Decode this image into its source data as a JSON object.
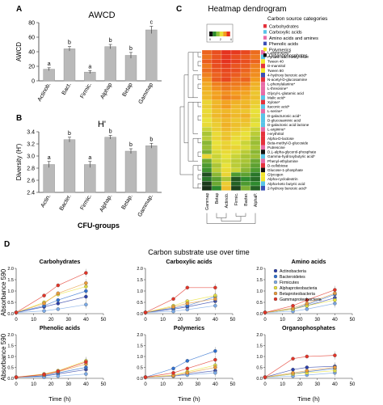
{
  "panels": {
    "A": {
      "letter": "A",
      "chart_data": {
        "type": "bar",
        "title": "AWCD",
        "ylabel": "AWCD",
        "ylim": [
          0,
          80
        ],
        "yticks": [
          0,
          20,
          40,
          60,
          80
        ],
        "categories": [
          "Actinob.",
          "Bact.",
          "Firmic.",
          "Alphap",
          "Betap",
          "Gammap"
        ],
        "values": [
          16,
          44,
          12,
          47,
          35,
          70
        ],
        "errors": [
          2,
          3,
          2,
          3,
          4,
          5
        ],
        "letters": [
          "a",
          "b",
          "a",
          "b",
          "b",
          "c"
        ],
        "grid": false
      }
    },
    "B": {
      "letter": "B",
      "chart_data": {
        "type": "bar",
        "title": "H'",
        "ylabel": "Diversity (H')",
        "xlabel": "CFU-groups",
        "ylim": [
          2.4,
          3.4
        ],
        "yticks": [
          2.4,
          2.6,
          2.8,
          3.0,
          3.2,
          3.4
        ],
        "ytick_labels": [
          "2.4",
          "2.6",
          "2.8",
          "3.0",
          "3.2",
          "3.4"
        ],
        "categories": [
          "Actin.",
          "Bacter.",
          "Firmic.",
          "Alphap.",
          "Betap.",
          "Gammap."
        ],
        "values": [
          2.86,
          3.27,
          2.86,
          3.31,
          3.08,
          3.17
        ],
        "errors": [
          0.05,
          0.04,
          0.05,
          0.03,
          0.04,
          0.04
        ],
        "letters": [
          "a",
          "b",
          "a",
          "b",
          "b",
          "b"
        ],
        "grid": false
      }
    },
    "C": {
      "letter": "C",
      "chart_data": {
        "type": "heatmap",
        "title": "Heatmap dendrogram",
        "colorkey_title": "Color Key",
        "colorkey_ticks": [
          "0",
          "2",
          "4"
        ],
        "colors": {
          "low": "#1a1a1a",
          "mid_low": "#2e8b2e",
          "mid": "#f2e63a",
          "high": "#f39c1e",
          "max": "#e5321f"
        },
        "columns": [
          "Gammap",
          "Betap",
          "Actinob.",
          "Firmic.",
          "Bacter.",
          "AlphaP."
        ],
        "rows": [
          "L-asparagine*",
          "Pyruvic acid methyl ester",
          "Tween 40",
          "D-mannitol",
          "Tween 80",
          "4-hydroxy benzoic acid*",
          "N-acetyl-D-glucosamine",
          "L-phenylalanine*",
          "L-threonine*",
          "Glycyl-L-glutamic acid",
          "Malic acid*",
          "Xylose*",
          "Itaconic acid*",
          "L-serine*",
          "D-galacturonic acid*",
          "D-glucosaminic acid",
          "D-galactonic acid lactone",
          "L-arginine*",
          "i-erythritol",
          "Alpha-D-lactose",
          "Beta-methyl-D-glucoside",
          "Putrescine",
          "D,L-alpha-glycerol-phosphate",
          "Gamma-hydroxybutyric acid*",
          "Phenyl-ethylamine",
          "D-cellobiose",
          "Glucose-1-phosphate",
          "Glycogen",
          "Alpha-cyclodextrin",
          "Alpha-keto butyric acid",
          "2-hydroxy benzoic acid*"
        ],
        "categories_legend_title": "Carbon source categories",
        "categories": [
          {
            "name": "Carbohydrates",
            "color": "#e5313b"
          },
          {
            "name": "Carboxylic acids",
            "color": "#58c4e8"
          },
          {
            "name": "Amino acids and amines",
            "color": "#e86aa6"
          },
          {
            "name": "Phenolic acids",
            "color": "#3a4fb5"
          },
          {
            "name": "Polymerics",
            "color": "#f3e52b"
          },
          {
            "name": "Organophosphates",
            "color": "#111111"
          }
        ],
        "row_categories": [
          2,
          1,
          4,
          0,
          4,
          3,
          0,
          2,
          2,
          2,
          1,
          0,
          1,
          2,
          1,
          1,
          1,
          2,
          0,
          0,
          0,
          2,
          5,
          1,
          2,
          0,
          5,
          4,
          4,
          1,
          3
        ],
        "values": [
          [
            4.2,
            4.5,
            4.9,
            4.8,
            4.6,
            4.1
          ],
          [
            4.0,
            4.4,
            4.8,
            4.5,
            4.3,
            3.9
          ],
          [
            4.3,
            4.6,
            4.9,
            4.7,
            4.5,
            4.2
          ],
          [
            3.9,
            4.5,
            4.7,
            4.4,
            4.3,
            3.8
          ],
          [
            4.1,
            4.4,
            4.6,
            4.5,
            4.2,
            3.7
          ],
          [
            3.8,
            4.2,
            4.5,
            4.3,
            4.0,
            3.6
          ],
          [
            3.5,
            4.3,
            4.6,
            4.1,
            4.2,
            3.4
          ],
          [
            3.2,
            3.8,
            4.0,
            3.9,
            3.8,
            3.1
          ],
          [
            3.1,
            3.6,
            3.9,
            3.7,
            3.5,
            3.0
          ],
          [
            3.0,
            3.3,
            3.6,
            3.4,
            3.3,
            2.8
          ],
          [
            3.0,
            3.4,
            3.8,
            3.6,
            3.2,
            2.9
          ],
          [
            2.6,
            3.0,
            3.3,
            3.1,
            3.0,
            2.7
          ],
          [
            2.7,
            3.1,
            3.4,
            3.0,
            3.1,
            2.6
          ],
          [
            2.5,
            2.9,
            3.0,
            2.9,
            2.8,
            2.4
          ],
          [
            2.6,
            3.0,
            3.2,
            3.0,
            3.1,
            2.5
          ],
          [
            2.4,
            2.8,
            3.0,
            2.8,
            2.9,
            2.3
          ],
          [
            2.5,
            2.7,
            3.1,
            2.9,
            2.8,
            2.4
          ],
          [
            2.2,
            2.7,
            3.0,
            2.8,
            2.6,
            2.2
          ],
          [
            2.0,
            2.5,
            2.8,
            2.6,
            2.4,
            2.1
          ],
          [
            2.1,
            2.6,
            2.9,
            2.5,
            2.5,
            2.0
          ],
          [
            1.8,
            2.4,
            2.6,
            2.4,
            2.2,
            1.9
          ],
          [
            1.9,
            2.5,
            2.7,
            2.6,
            2.3,
            2.0
          ],
          [
            1.7,
            2.3,
            2.5,
            2.3,
            2.1,
            1.8
          ],
          [
            2.6,
            2.2,
            2.4,
            2.2,
            2.0,
            1.9
          ],
          [
            1.6,
            2.2,
            2.3,
            2.1,
            2.0,
            1.6
          ],
          [
            1.4,
            2.0,
            2.4,
            2.1,
            1.9,
            1.5
          ],
          [
            1.3,
            2.1,
            2.5,
            2.2,
            1.8,
            1.4
          ],
          [
            0.6,
            1.8,
            2.6,
            1.4,
            1.5,
            1.0
          ],
          [
            1.0,
            1.5,
            2.0,
            0.7,
            1.2,
            0.9
          ],
          [
            0.4,
            1.6,
            2.7,
            0.8,
            1.4,
            1.2
          ],
          [
            0.3,
            1.2,
            2.9,
            0.5,
            1.7,
            0.8
          ]
        ]
      }
    },
    "D": {
      "letter": "D",
      "title": "Carbon substrate use over time",
      "ylabel": "Absorbance 590",
      "xlabel": "Time (h)",
      "xticks": [
        0,
        10,
        20,
        30,
        40,
        50
      ],
      "yticks": [
        0,
        0.5,
        1,
        1.5,
        2
      ],
      "yticks_labels": [
        "0.0",
        "0.5",
        "1.0",
        "1.5",
        "2.0"
      ],
      "legend": [
        {
          "name": "Actinobacteria",
          "color": "#2c3fa8"
        },
        {
          "name": "Bacteroidetes",
          "color": "#2e6fd0"
        },
        {
          "name": "Firmicutes",
          "color": "#7aa9e6"
        },
        {
          "name": "Alphaproteobacteria",
          "color": "#e8e33a"
        },
        {
          "name": "Betaproteobacteria",
          "color": "#e99a3b"
        },
        {
          "name": "Gammaproteobacteria",
          "color": "#e23428"
        }
      ],
      "chart_data": [
        {
          "type": "line",
          "title": "Carbohydrates",
          "ylim": [
            0,
            2
          ],
          "x": [
            0,
            16,
            24,
            40
          ],
          "series": [
            {
              "name": "Actinobacteria",
              "values": [
                0.05,
                0.3,
                0.45,
                0.75
              ]
            },
            {
              "name": "Bacteroidetes",
              "values": [
                0.05,
                0.35,
                0.6,
                1.0
              ]
            },
            {
              "name": "Firmicutes",
              "values": [
                0.05,
                0.12,
                0.2,
                0.4
              ]
            },
            {
              "name": "Alphaproteobacteria",
              "values": [
                0.05,
                0.5,
                0.85,
                1.2
              ]
            },
            {
              "name": "Betaproteobacteria",
              "values": [
                0.05,
                0.45,
                0.9,
                1.35
              ]
            },
            {
              "name": "Gammaproteobacteria",
              "values": [
                0.05,
                0.8,
                1.25,
                1.8
              ]
            }
          ]
        },
        {
          "type": "line",
          "title": "Carboxylic acids",
          "ylim": [
            0,
            2
          ],
          "x": [
            0,
            16,
            24,
            40
          ],
          "series": [
            {
              "name": "Actinobacteria",
              "values": [
                0.05,
                0.2,
                0.3,
                0.55
              ]
            },
            {
              "name": "Bacteroidetes",
              "values": [
                0.05,
                0.25,
                0.35,
                0.75
              ]
            },
            {
              "name": "Firmicutes",
              "values": [
                0.05,
                0.1,
                0.18,
                0.35
              ]
            },
            {
              "name": "Alphaproteobacteria",
              "values": [
                0.05,
                0.35,
                0.55,
                0.8
              ]
            },
            {
              "name": "Betaproteobacteria",
              "values": [
                0.05,
                0.3,
                0.45,
                0.65
              ]
            },
            {
              "name": "Gammaproteobacteria",
              "values": [
                0.05,
                0.65,
                1.15,
                1.15
              ]
            }
          ]
        },
        {
          "type": "line",
          "title": "Amino acids",
          "ylim": [
            0,
            2
          ],
          "x": [
            0,
            16,
            24,
            40
          ],
          "series": [
            {
              "name": "Actinobacteria",
              "values": [
                0.05,
                0.2,
                0.35,
                0.7
              ]
            },
            {
              "name": "Bacteroidetes",
              "values": [
                0.05,
                0.2,
                0.4,
                0.85
              ]
            },
            {
              "name": "Firmicutes",
              "values": [
                0.05,
                0.1,
                0.2,
                0.45
              ]
            },
            {
              "name": "Alphaproteobacteria",
              "values": [
                0.05,
                0.2,
                0.35,
                0.6
              ]
            },
            {
              "name": "Betaproteobacteria",
              "values": [
                0.05,
                0.25,
                0.45,
                0.9
              ]
            },
            {
              "name": "Gammaproteobacteria",
              "values": [
                0.05,
                0.35,
                0.6,
                1.05
              ]
            }
          ]
        },
        {
          "type": "line",
          "title": "Phenolic acids",
          "ylim": [
            0,
            2
          ],
          "x": [
            0,
            16,
            24,
            40
          ],
          "series": [
            {
              "name": "Actinobacteria",
              "values": [
                0.05,
                0.1,
                0.2,
                0.4
              ]
            },
            {
              "name": "Bacteroidetes",
              "values": [
                0.05,
                0.12,
                0.25,
                0.5
              ]
            },
            {
              "name": "Firmicutes",
              "values": [
                0.05,
                0.05,
                0.1,
                0.2
              ]
            },
            {
              "name": "Alphaproteobacteria",
              "values": [
                0.05,
                0.2,
                0.35,
                0.8
              ]
            },
            {
              "name": "Betaproteobacteria",
              "values": [
                0.05,
                0.15,
                0.3,
                0.65
              ]
            },
            {
              "name": "Gammaproteobacteria",
              "values": [
                0.05,
                0.18,
                0.32,
                0.75
              ]
            }
          ]
        },
        {
          "type": "line",
          "title": "Polymerics",
          "ylim": [
            0,
            2
          ],
          "x": [
            0,
            16,
            24,
            40
          ],
          "series": [
            {
              "name": "Actinobacteria",
              "values": [
                0.05,
                0.1,
                0.2,
                0.35
              ]
            },
            {
              "name": "Bacteroidetes",
              "values": [
                0.05,
                0.45,
                0.8,
                1.25
              ]
            },
            {
              "name": "Firmicutes",
              "values": [
                0.05,
                0.1,
                0.15,
                0.25
              ]
            },
            {
              "name": "Alphaproteobacteria",
              "values": [
                0.05,
                0.15,
                0.3,
                0.6
              ]
            },
            {
              "name": "Betaproteobacteria",
              "values": [
                0.05,
                0.12,
                0.25,
                0.5
              ]
            },
            {
              "name": "Gammaproteobacteria",
              "values": [
                0.05,
                0.25,
                0.45,
                0.85
              ]
            }
          ]
        },
        {
          "type": "line",
          "title": "Organophosphates",
          "ylim": [
            0,
            2
          ],
          "x": [
            0,
            16,
            24,
            40
          ],
          "series": [
            {
              "name": "Actinobacteria",
              "values": [
                0.05,
                0.4,
                0.5,
                0.55
              ]
            },
            {
              "name": "Bacteroidetes",
              "values": [
                0.05,
                0.2,
                0.3,
                0.45
              ]
            },
            {
              "name": "Firmicutes",
              "values": [
                0.05,
                0.1,
                0.15,
                0.25
              ]
            },
            {
              "name": "Alphaproteobacteria",
              "values": [
                0.05,
                0.2,
                0.25,
                0.35
              ]
            },
            {
              "name": "Betaproteobacteria",
              "values": [
                0.05,
                0.25,
                0.35,
                0.5
              ]
            },
            {
              "name": "Gammaproteobacteria",
              "values": [
                0.05,
                0.9,
                1.0,
                1.05
              ]
            }
          ]
        }
      ]
    }
  }
}
